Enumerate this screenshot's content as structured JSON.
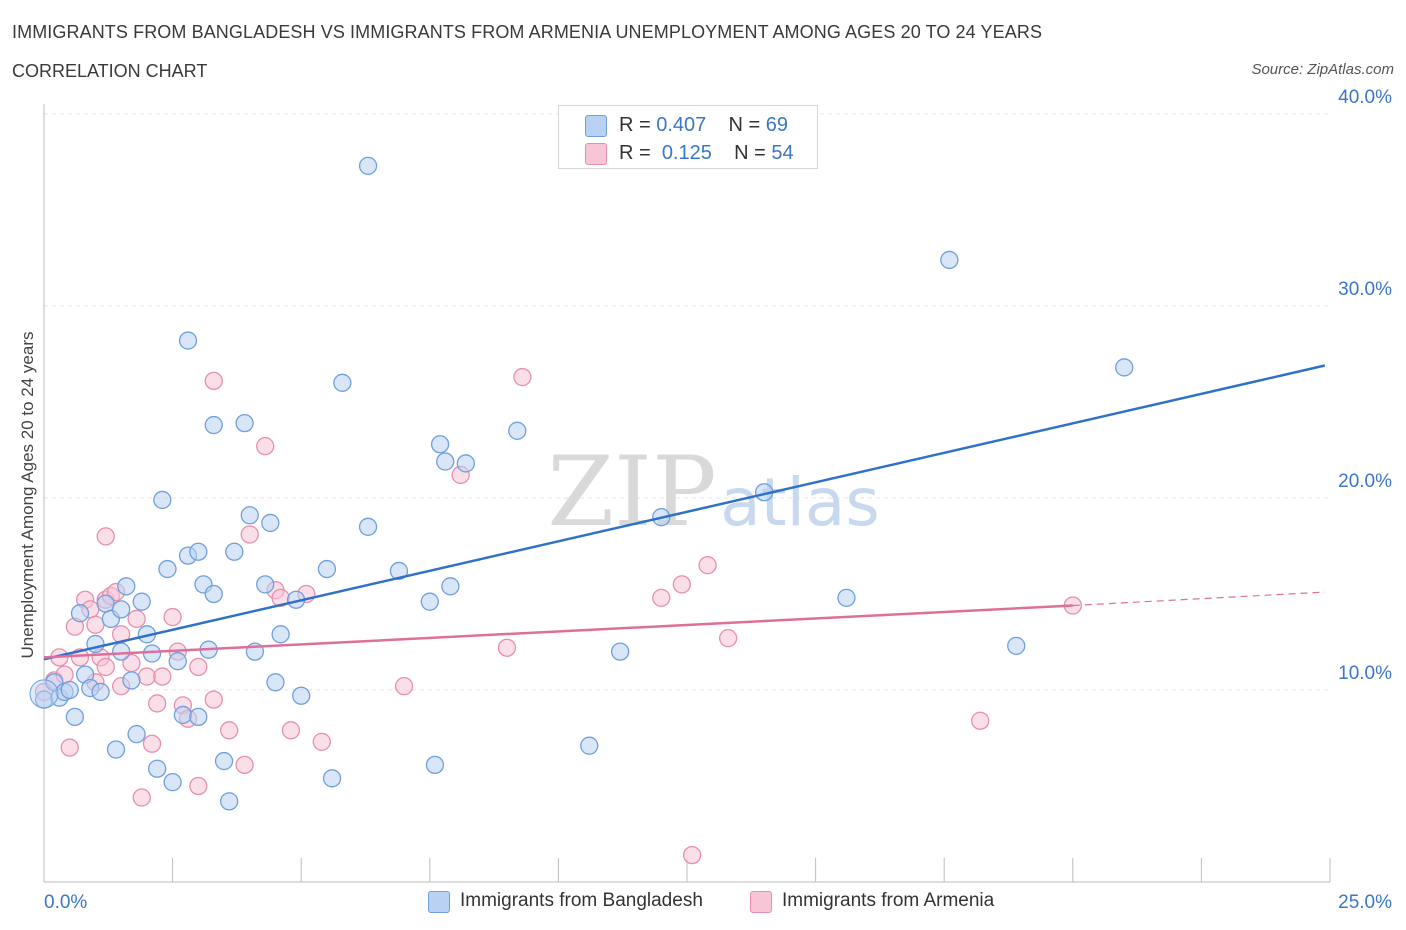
{
  "header": {
    "title": "IMMIGRANTS FROM BANGLADESH VS IMMIGRANTS FROM ARMENIA UNEMPLOYMENT AMONG AGES 20 TO 24 YEARS",
    "subtitle": "CORRELATION CHART",
    "source": "Source: ZipAtlas.com"
  },
  "watermark": {
    "part1": "ZIP",
    "part2": "atlas"
  },
  "legend_top": {
    "rows": [
      {
        "r_label": "R = ",
        "r_value": "0.407",
        "n_label": "N = ",
        "n_value": "69"
      },
      {
        "r_label": "R = ",
        "r_value": "0.125",
        "n_label": "N = ",
        "n_value": "54"
      }
    ]
  },
  "colors": {
    "bangladesh_fill": "#b9d2f3",
    "bangladesh_stroke": "#6f9fdc",
    "bangladesh_line": "#2f70c9",
    "armenia_fill": "#f7c5d5",
    "armenia_stroke": "#e88eae",
    "armenia_line": "#e06f98",
    "grid": "#e3e3e3",
    "axis_text": "#3b77c8"
  },
  "chart_data": {
    "type": "scatter",
    "xlabel": "",
    "ylabel": "Unemployment Among Ages 20 to 24 years",
    "xlim": [
      0,
      25
    ],
    "ylim": [
      0,
      40
    ],
    "x_tick_labels": [
      {
        "value": 0,
        "label": "0.0%"
      },
      {
        "value": 25,
        "label": "25.0%"
      }
    ],
    "y_tick_labels": [
      {
        "value": 10,
        "label": "10.0%"
      },
      {
        "value": 20,
        "label": "20.0%"
      },
      {
        "value": 30,
        "label": "30.0%"
      },
      {
        "value": 40,
        "label": "40.0%"
      }
    ],
    "grid": true,
    "legend_position": "bottom",
    "series": [
      {
        "name": "Immigrants from Bangladesh",
        "trend": {
          "x": [
            0,
            24.9
          ],
          "y": [
            11.6,
            26.9
          ]
        },
        "points": [
          [
            0.0,
            9.5
          ],
          [
            0.2,
            10.4
          ],
          [
            0.3,
            9.6
          ],
          [
            0.4,
            9.9
          ],
          [
            0.5,
            10.0
          ],
          [
            0.6,
            8.6
          ],
          [
            0.7,
            14.0
          ],
          [
            0.8,
            10.8
          ],
          [
            0.9,
            10.1
          ],
          [
            1.0,
            12.4
          ],
          [
            1.1,
            9.9
          ],
          [
            1.2,
            14.5
          ],
          [
            1.3,
            13.7
          ],
          [
            1.4,
            6.9
          ],
          [
            1.5,
            12.0
          ],
          [
            1.5,
            14.2
          ],
          [
            1.6,
            15.4
          ],
          [
            1.7,
            10.5
          ],
          [
            1.8,
            7.7
          ],
          [
            1.9,
            14.6
          ],
          [
            2.0,
            12.9
          ],
          [
            2.1,
            11.9
          ],
          [
            2.2,
            5.9
          ],
          [
            2.3,
            19.9
          ],
          [
            2.4,
            16.3
          ],
          [
            2.5,
            5.2
          ],
          [
            2.6,
            11.5
          ],
          [
            2.7,
            8.7
          ],
          [
            2.8,
            17.0
          ],
          [
            2.8,
            28.2
          ],
          [
            3.0,
            17.2
          ],
          [
            3.0,
            8.6
          ],
          [
            3.1,
            15.5
          ],
          [
            3.2,
            12.1
          ],
          [
            3.3,
            15.0
          ],
          [
            3.3,
            23.8
          ],
          [
            3.5,
            6.3
          ],
          [
            3.6,
            4.2
          ],
          [
            3.7,
            17.2
          ],
          [
            3.9,
            23.9
          ],
          [
            4.0,
            19.1
          ],
          [
            4.1,
            12.0
          ],
          [
            4.3,
            15.5
          ],
          [
            4.4,
            18.7
          ],
          [
            4.5,
            10.4
          ],
          [
            4.6,
            12.9
          ],
          [
            4.9,
            14.7
          ],
          [
            5.0,
            9.7
          ],
          [
            5.5,
            16.3
          ],
          [
            5.6,
            5.4
          ],
          [
            5.8,
            26.0
          ],
          [
            6.3,
            37.3
          ],
          [
            6.3,
            18.5
          ],
          [
            6.9,
            16.2
          ],
          [
            7.5,
            14.6
          ],
          [
            7.6,
            6.1
          ],
          [
            7.7,
            22.8
          ],
          [
            7.8,
            21.9
          ],
          [
            7.9,
            15.4
          ],
          [
            8.2,
            21.8
          ],
          [
            9.2,
            23.5
          ],
          [
            10.6,
            7.1
          ],
          [
            11.2,
            12.0
          ],
          [
            12.0,
            19.0
          ],
          [
            14.0,
            20.3
          ],
          [
            15.6,
            14.8
          ],
          [
            17.6,
            32.4
          ],
          [
            18.9,
            12.3
          ],
          [
            21.0,
            26.8
          ]
        ]
      },
      {
        "name": "Immigrants from Armenia",
        "trend": {
          "x": [
            0,
            20.0
          ],
          "y": [
            11.7,
            14.4
          ]
        },
        "trend_extension": {
          "x": [
            20.0,
            24.9
          ],
          "y": [
            14.4,
            15.1
          ]
        },
        "points": [
          [
            0.0,
            9.9
          ],
          [
            0.2,
            10.5
          ],
          [
            0.3,
            11.7
          ],
          [
            0.4,
            10.8
          ],
          [
            0.5,
            7.0
          ],
          [
            0.6,
            13.3
          ],
          [
            0.7,
            11.7
          ],
          [
            0.8,
            14.7
          ],
          [
            0.9,
            14.2
          ],
          [
            1.0,
            13.4
          ],
          [
            1.0,
            10.4
          ],
          [
            1.1,
            11.7
          ],
          [
            1.2,
            14.7
          ],
          [
            1.2,
            11.2
          ],
          [
            1.2,
            18.0
          ],
          [
            1.3,
            14.9
          ],
          [
            1.4,
            15.1
          ],
          [
            1.5,
            12.9
          ],
          [
            1.5,
            10.2
          ],
          [
            1.7,
            11.4
          ],
          [
            1.8,
            13.7
          ],
          [
            1.9,
            4.4
          ],
          [
            2.0,
            10.7
          ],
          [
            2.1,
            7.2
          ],
          [
            2.2,
            9.3
          ],
          [
            2.3,
            10.7
          ],
          [
            2.5,
            13.8
          ],
          [
            2.6,
            12.0
          ],
          [
            2.7,
            9.2
          ],
          [
            2.8,
            8.5
          ],
          [
            3.0,
            5.0
          ],
          [
            3.0,
            11.2
          ],
          [
            3.3,
            26.1
          ],
          [
            3.3,
            9.5
          ],
          [
            3.6,
            7.9
          ],
          [
            3.9,
            6.1
          ],
          [
            4.0,
            18.1
          ],
          [
            4.3,
            22.7
          ],
          [
            4.5,
            15.2
          ],
          [
            4.6,
            14.8
          ],
          [
            4.8,
            7.9
          ],
          [
            5.1,
            15.0
          ],
          [
            5.4,
            7.3
          ],
          [
            7.0,
            10.2
          ],
          [
            8.1,
            21.2
          ],
          [
            9.0,
            12.2
          ],
          [
            9.3,
            26.3
          ],
          [
            12.0,
            14.8
          ],
          [
            12.4,
            15.5
          ],
          [
            12.6,
            1.4
          ],
          [
            12.9,
            16.5
          ],
          [
            13.3,
            12.7
          ],
          [
            18.2,
            8.4
          ],
          [
            20.0,
            14.4
          ]
        ]
      }
    ]
  }
}
